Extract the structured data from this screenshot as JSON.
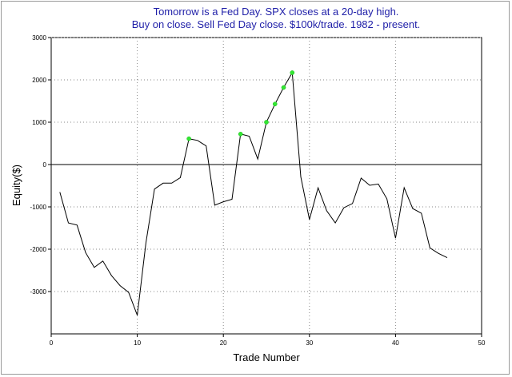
{
  "chart_data": {
    "type": "line",
    "title_lines": [
      "Tomorrow is a Fed Day. SPX closes at a 20-day high.",
      "Buy on close. Sell Fed Day close. $100k/trade. 1982 - present."
    ],
    "xlabel": "Trade Number",
    "ylabel": "Equity($)",
    "xlim": [
      0,
      50
    ],
    "ylim": [
      -4000,
      3000
    ],
    "x_ticks": [
      0,
      10,
      20,
      30,
      40,
      50
    ],
    "y_ticks": [
      3000,
      2000,
      1000,
      0,
      -1000,
      -2000,
      -3000
    ],
    "grid": true,
    "series": [
      {
        "color": "#000000",
        "x": [
          1,
          2,
          3,
          4,
          5,
          6,
          7,
          8,
          9,
          10,
          11,
          12,
          13,
          14,
          15,
          16,
          17,
          18,
          19,
          20,
          21,
          22,
          23,
          24,
          25,
          26,
          27,
          28,
          29,
          30,
          31,
          32,
          33,
          34,
          35,
          36,
          37,
          38,
          39,
          40,
          41,
          42,
          43,
          44,
          45,
          46
        ],
        "values": [
          -650,
          -1380,
          -1430,
          -2080,
          -2430,
          -2280,
          -2620,
          -2860,
          -3020,
          -3560,
          -1850,
          -580,
          -440,
          -440,
          -310,
          610,
          570,
          440,
          -960,
          -880,
          -820,
          720,
          670,
          130,
          1000,
          1430,
          1820,
          2170,
          -290,
          -1300,
          -550,
          -1090,
          -1380,
          -1020,
          -920,
          -320,
          -490,
          -460,
          -810,
          -1740,
          -550,
          -1040,
          -1150,
          -1970,
          -2100,
          -2200
        ]
      }
    ],
    "highlighted_points": {
      "color": "#33e633",
      "x": [
        16,
        22,
        25,
        26,
        27,
        28
      ],
      "values": [
        610,
        720,
        1000,
        1430,
        1820,
        2170
      ]
    }
  }
}
